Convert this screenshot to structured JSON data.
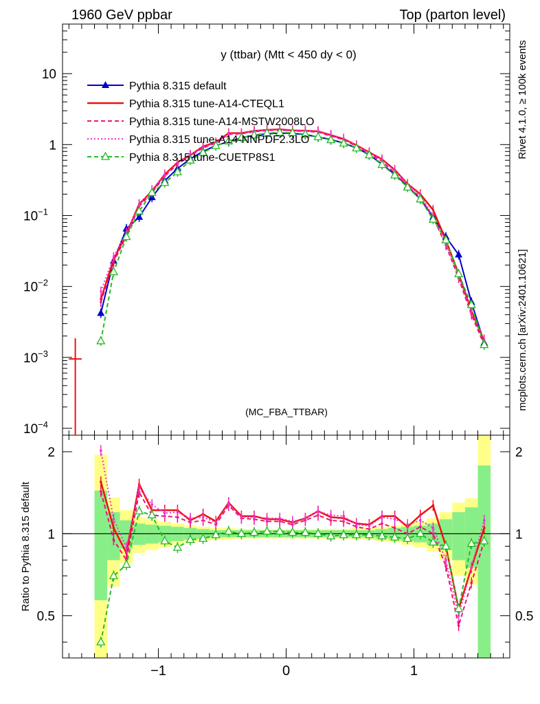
{
  "header": {
    "left": "1960 GeV ppbar",
    "right": "Top (parton level)"
  },
  "side_labels": {
    "rivet": "Rivet 4.1.0, ≥ 100k events",
    "mcplots": "mcplots.cern.ch [arXiv:2401.10621]"
  },
  "chart_data": {
    "type": "line",
    "title": "y (ttbar) (Mtt < 450 dy < 0)",
    "watermark": "(MC_FBA_TTBAR)",
    "xlabel": "",
    "ylabel": "",
    "ratio_ylabel": "Ratio to Pythia 8.315 default",
    "xlim": [
      -1.75,
      1.75
    ],
    "ylim": [
      8e-05,
      50
    ],
    "ratio_ylim": [
      0.35,
      2.3
    ],
    "yscale": "log",
    "x_ticks": [
      -1,
      0,
      1
    ],
    "x_tick_labels": [
      "−1",
      "0",
      "1"
    ],
    "y_ticks": [
      0.0001,
      0.001,
      0.01,
      0.1,
      1,
      10
    ],
    "ratio_ticks": [
      0.5,
      1,
      2
    ],
    "ratio_tick_labels": [
      "0.5",
      "1",
      "2"
    ],
    "x": [
      -1.45,
      -1.35,
      -1.25,
      -1.15,
      -1.05,
      -0.95,
      -0.85,
      -0.75,
      -0.65,
      -0.55,
      -0.45,
      -0.35,
      -0.25,
      -0.15,
      -0.05,
      0.05,
      0.15,
      0.25,
      0.35,
      0.45,
      0.55,
      0.65,
      0.75,
      0.85,
      0.95,
      1.05,
      1.15,
      1.25,
      1.35,
      1.45,
      1.55
    ],
    "series": [
      {
        "name": "Pythia 8.315 default",
        "color": "#0000cc",
        "style": "solid",
        "marker": "filled-triangle",
        "values": [
          0.0042,
          0.023,
          0.065,
          0.095,
          0.18,
          0.31,
          0.46,
          0.63,
          0.8,
          0.97,
          1.1,
          1.25,
          1.35,
          1.42,
          1.45,
          1.44,
          1.38,
          1.28,
          1.18,
          1.05,
          0.9,
          0.72,
          0.53,
          0.38,
          0.26,
          0.17,
          0.095,
          0.05,
          0.028,
          0.006,
          0.0016
        ]
      },
      {
        "name": "Pythia 8.315 tune-A14-CTEQL1",
        "color": "#ee1111",
        "style": "solid",
        "marker": "none",
        "values": [
          0.0066,
          0.024,
          0.055,
          0.145,
          0.22,
          0.38,
          0.56,
          0.71,
          0.94,
          1.08,
          1.45,
          1.45,
          1.56,
          1.61,
          1.64,
          1.58,
          1.57,
          1.54,
          1.36,
          1.2,
          0.98,
          0.78,
          0.62,
          0.44,
          0.28,
          0.2,
          0.12,
          0.045,
          0.015,
          0.0045,
          0.0017
        ]
      },
      {
        "name": "Pythia 8.315 tune-A14-MSTW2008LO",
        "color": "#ee1177",
        "style": "dashed",
        "marker": "none",
        "values": [
          0.006,
          0.022,
          0.052,
          0.135,
          0.21,
          0.36,
          0.53,
          0.69,
          0.9,
          1.05,
          1.4,
          1.42,
          1.52,
          1.58,
          1.61,
          1.56,
          1.54,
          1.5,
          1.32,
          1.17,
          0.95,
          0.75,
          0.58,
          0.4,
          0.26,
          0.18,
          0.095,
          0.038,
          0.013,
          0.004,
          0.0015
        ]
      },
      {
        "name": "Pythia 8.315 tune-A14-NNPDF2.3LO",
        "color": "#ee33cc",
        "style": "dotted",
        "marker": "none",
        "values": [
          0.0085,
          0.026,
          0.058,
          0.14,
          0.23,
          0.37,
          0.55,
          0.72,
          0.92,
          1.07,
          1.42,
          1.44,
          1.55,
          1.62,
          1.66,
          1.6,
          1.58,
          1.55,
          1.38,
          1.22,
          0.97,
          0.77,
          0.61,
          0.43,
          0.28,
          0.19,
          0.1,
          0.04,
          0.014,
          0.0045,
          0.0018
        ]
      },
      {
        "name": "Pythia 8.315 tune-CUETP8S1",
        "color": "#22bb22",
        "style": "dashed",
        "marker": "open-triangle",
        "values": [
          0.0017,
          0.016,
          0.05,
          0.115,
          0.21,
          0.29,
          0.41,
          0.6,
          0.77,
          0.96,
          1.12,
          1.25,
          1.36,
          1.45,
          1.48,
          1.46,
          1.4,
          1.28,
          1.16,
          1.04,
          0.89,
          0.71,
          0.52,
          0.37,
          0.25,
          0.17,
          0.088,
          0.045,
          0.015,
          0.0055,
          0.0015
        ]
      }
    ],
    "ratio_series": [
      {
        "name": "Pythia 8.315 tune-A14-CTEQL1",
        "values": [
          1.55,
          1.05,
          0.85,
          1.52,
          1.22,
          1.22,
          1.22,
          1.12,
          1.18,
          1.11,
          1.3,
          1.16,
          1.16,
          1.13,
          1.13,
          1.1,
          1.14,
          1.21,
          1.15,
          1.14,
          1.09,
          1.08,
          1.16,
          1.16,
          1.06,
          1.17,
          1.27,
          0.9,
          0.53,
          0.75,
          1.05
        ]
      },
      {
        "name": "Pythia 8.315 tune-A14-MSTW2008LO",
        "values": [
          1.43,
          0.95,
          0.8,
          1.42,
          1.17,
          1.16,
          1.15,
          1.1,
          1.12,
          1.08,
          1.27,
          1.14,
          1.13,
          1.11,
          1.11,
          1.08,
          1.12,
          1.17,
          1.12,
          1.11,
          1.06,
          1.04,
          1.09,
          1.05,
          1.0,
          1.06,
          1.0,
          0.76,
          0.46,
          0.66,
          0.94
        ]
      },
      {
        "name": "Pythia 8.315 tune-A14-NNPDF2.3LO",
        "values": [
          2.02,
          1.13,
          0.89,
          1.47,
          1.28,
          1.19,
          1.2,
          1.14,
          1.15,
          1.1,
          1.29,
          1.15,
          1.15,
          1.14,
          1.14,
          1.11,
          1.14,
          1.21,
          1.17,
          1.16,
          1.08,
          1.07,
          1.15,
          1.13,
          1.08,
          1.12,
          1.05,
          0.8,
          0.5,
          0.75,
          1.12
        ]
      },
      {
        "name": "Pythia 8.315 tune-CUETP8S1",
        "values": [
          0.4,
          0.7,
          0.77,
          1.21,
          1.17,
          0.94,
          0.89,
          0.95,
          0.96,
          0.99,
          1.02,
          1.0,
          1.01,
          1.02,
          1.02,
          1.01,
          1.01,
          1.0,
          0.98,
          0.99,
          0.99,
          0.99,
          0.98,
          0.97,
          0.96,
          1.0,
          0.93,
          0.9,
          0.53,
          0.92,
          0.94
        ]
      }
    ],
    "ratio_band_yellow": [
      [
        0.35,
        1.95
      ],
      [
        0.64,
        1.36
      ],
      [
        0.78,
        1.22
      ],
      [
        0.85,
        1.15
      ],
      [
        0.87,
        1.13
      ],
      [
        0.89,
        1.11
      ],
      [
        0.91,
        1.09
      ],
      [
        0.93,
        1.07
      ],
      [
        0.94,
        1.06
      ],
      [
        0.95,
        1.05
      ],
      [
        0.95,
        1.05
      ],
      [
        0.96,
        1.04
      ],
      [
        0.96,
        1.04
      ],
      [
        0.96,
        1.04
      ],
      [
        0.96,
        1.04
      ],
      [
        0.96,
        1.04
      ],
      [
        0.96,
        1.04
      ],
      [
        0.96,
        1.04
      ],
      [
        0.96,
        1.04
      ],
      [
        0.96,
        1.04
      ],
      [
        0.95,
        1.05
      ],
      [
        0.95,
        1.05
      ],
      [
        0.94,
        1.06
      ],
      [
        0.93,
        1.07
      ],
      [
        0.91,
        1.09
      ],
      [
        0.89,
        1.11
      ],
      [
        0.86,
        1.14
      ],
      [
        0.8,
        1.2
      ],
      [
        0.7,
        1.3
      ],
      [
        0.65,
        1.35
      ],
      [
        0.35,
        2.35
      ]
    ],
    "ratio_band_green": [
      [
        0.57,
        1.44
      ],
      [
        0.8,
        1.2
      ],
      [
        0.88,
        1.12
      ],
      [
        0.91,
        1.09
      ],
      [
        0.92,
        1.08
      ],
      [
        0.93,
        1.07
      ],
      [
        0.94,
        1.06
      ],
      [
        0.95,
        1.05
      ],
      [
        0.96,
        1.04
      ],
      [
        0.97,
        1.03
      ],
      [
        0.97,
        1.03
      ],
      [
        0.97,
        1.03
      ],
      [
        0.97,
        1.03
      ],
      [
        0.97,
        1.03
      ],
      [
        0.97,
        1.03
      ],
      [
        0.97,
        1.03
      ],
      [
        0.97,
        1.03
      ],
      [
        0.97,
        1.03
      ],
      [
        0.97,
        1.03
      ],
      [
        0.97,
        1.03
      ],
      [
        0.97,
        1.03
      ],
      [
        0.97,
        1.03
      ],
      [
        0.96,
        1.04
      ],
      [
        0.95,
        1.05
      ],
      [
        0.94,
        1.06
      ],
      [
        0.93,
        1.07
      ],
      [
        0.91,
        1.09
      ],
      [
        0.87,
        1.13
      ],
      [
        0.8,
        1.2
      ],
      [
        0.75,
        1.25
      ],
      [
        0.35,
        1.78
      ]
    ],
    "extra_points": [
      {
        "series": "Pythia 8.315 tune-A14-CTEQL1",
        "x": -1.65,
        "y": 0.00095
      }
    ]
  }
}
